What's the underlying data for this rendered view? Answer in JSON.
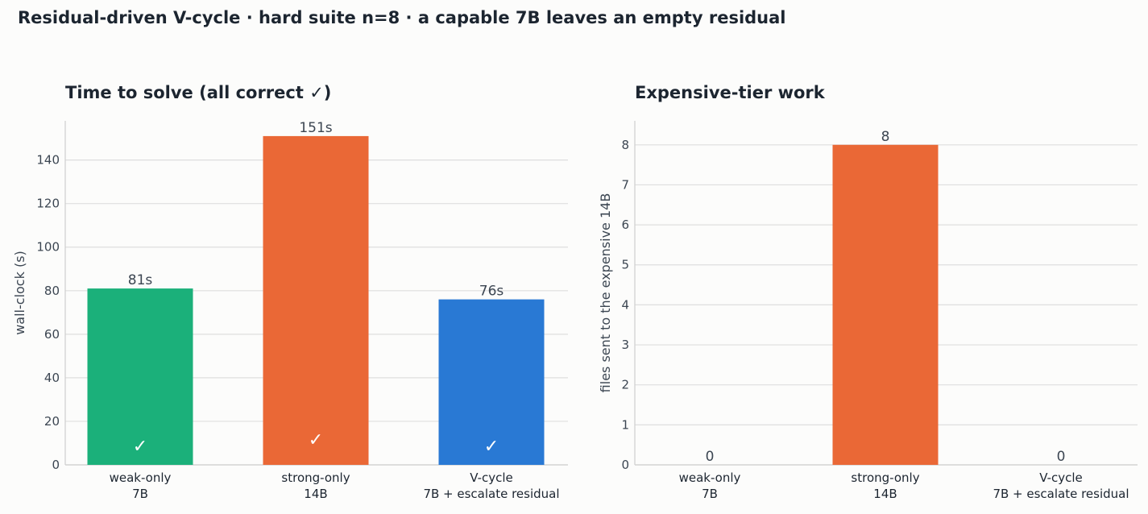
{
  "suptitle": "Residual-driven V-cycle · hard suite n=8 · a capable 7B leaves an empty residual",
  "chart_data": [
    {
      "type": "bar",
      "title": "Time to solve (all correct ✓)",
      "ylabel": "wall-clock (s)",
      "xlabel": "",
      "categories": [
        [
          "weak-only",
          "7B"
        ],
        [
          "strong-only",
          "14B"
        ],
        [
          "V-cycle",
          "7B + escalate residual"
        ]
      ],
      "values": [
        81,
        151,
        76
      ],
      "value_labels": [
        "81s",
        "151s",
        "76s"
      ],
      "bar_marks": [
        "✓",
        "✓",
        "✓"
      ],
      "colors": [
        "#1bb07a",
        "#ea6836",
        "#2979d4"
      ],
      "ylim": [
        0,
        158
      ],
      "yticks": [
        0,
        20,
        40,
        60,
        80,
        100,
        120,
        140
      ],
      "grid": true
    },
    {
      "type": "bar",
      "title": "Expensive-tier work",
      "ylabel": "files sent to the expensive 14B",
      "xlabel": "",
      "categories": [
        [
          "weak-only",
          "7B"
        ],
        [
          "strong-only",
          "14B"
        ],
        [
          "V-cycle",
          "7B + escalate residual"
        ]
      ],
      "values": [
        0,
        8,
        0
      ],
      "value_labels": [
        "0",
        "8",
        "0"
      ],
      "colors": [
        "#1bb07a",
        "#ea6836",
        "#2979d4"
      ],
      "ylim": [
        0,
        8.6
      ],
      "yticks": [
        0,
        1,
        2,
        3,
        4,
        5,
        6,
        7,
        8
      ],
      "grid": true
    }
  ]
}
